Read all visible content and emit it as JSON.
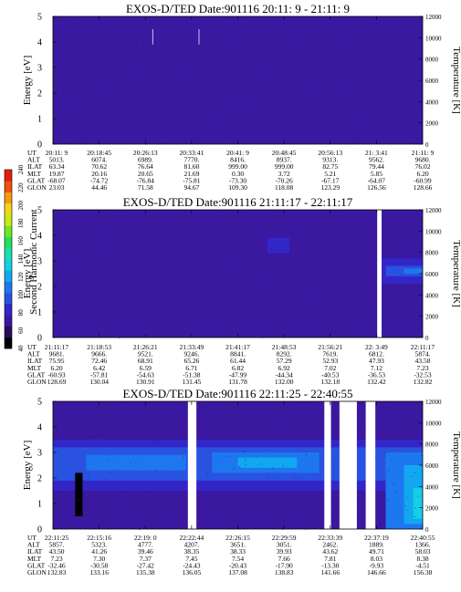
{
  "colorbar": {
    "label": "Second Harmonic Current",
    "ticks": [
      "40",
      "60",
      "80",
      "100",
      "120",
      "140",
      "160",
      "180",
      "200",
      "220",
      "240"
    ],
    "colors": [
      "#000000",
      "#2a0c5c",
      "#3b18a0",
      "#3326c8",
      "#2a52e0",
      "#1d78f0",
      "#12a8f0",
      "#14d0e6",
      "#18e0b4",
      "#22e060",
      "#70e820",
      "#c8e818",
      "#f4d418",
      "#f49a10",
      "#ee5010",
      "#e41c10"
    ]
  },
  "ephemeris_labels": [
    "UT",
    "ALT",
    "ILAT",
    "MLT",
    "GLAT",
    "GLON"
  ],
  "panels": [
    {
      "title": "EXOS-D/TED   Date:901116  20:11: 9 - 21:11: 9",
      "chart_data": {
        "type": "heatmap",
        "title": "EXOS-D/TED   Date:901116  20:11: 9 - 21:11: 9",
        "ylabel": "Energy [eV]",
        "y2label": "Temperature [K]",
        "ylim": [
          0,
          5
        ],
        "y2lim": [
          0,
          12000
        ],
        "yticks": [
          "0",
          "1",
          "2",
          "3",
          "4",
          "5"
        ],
        "y2ticks": [
          "0",
          "2000",
          "4000",
          "6000",
          "8000",
          "10000",
          "12000"
        ],
        "background_color": "#3b18a0",
        "bands": [],
        "gaps": [],
        "markers": [
          {
            "x": 0.27,
            "y0": 3.9,
            "y1": 4.5
          },
          {
            "x": 0.395,
            "y0": 3.9,
            "y1": 4.5
          }
        ],
        "x_ticks": [
          "20:11: 9",
          "20:18:45",
          "20:26:13",
          "20:33:41",
          "20:41: 9",
          "20:48:45",
          "20:56:13",
          "21: 3:41",
          "21:11: 9"
        ],
        "ephemeris": [
          [
            "20:11: 9",
            "20:18:45",
            "20:26:13",
            "20:33:41",
            "20:41: 9",
            "20:48:45",
            "20:56:13",
            "21: 3:41",
            "21:11: 9"
          ],
          [
            "5013.",
            "6074.",
            "6989.",
            "7770.",
            "8416.",
            "8937.",
            "9313.",
            "9562.",
            "9680."
          ],
          [
            "63.34",
            "70.62",
            "76.64",
            "81.60",
            "999.00",
            "999.00",
            "82.75",
            "79.44",
            "76.02"
          ],
          [
            "19.87",
            "20.16",
            "20.65",
            "21.69",
            "0.30",
            "3.72",
            "5.21",
            "5.85",
            "6.20"
          ],
          [
            "-68.07",
            "-74.72",
            "-76.84",
            "-75.81",
            "-73.30",
            "-70.26",
            "-67.17",
            "-64.07",
            "-60.99"
          ],
          [
            "23.03",
            "44.46",
            "71.58",
            "94.67",
            "109.30",
            "118.08",
            "123.29",
            "126.56",
            "128.66"
          ]
        ]
      }
    },
    {
      "title": "EXOS-D/TED   Date:901116  21:11:17 - 22:11:17",
      "chart_data": {
        "type": "heatmap",
        "title": "EXOS-D/TED   Date:901116  21:11:17 - 22:11:17",
        "ylabel": "Energy [eV]",
        "y2label": "Temperature [K]",
        "ylim": [
          0,
          5
        ],
        "y2lim": [
          0,
          12000
        ],
        "yticks": [
          "0",
          "1",
          "2",
          "3",
          "4",
          "5"
        ],
        "y2ticks": [
          "0",
          "2000",
          "4000",
          "6000",
          "8000",
          "10000",
          "12000"
        ],
        "background_color": "#3b18a0",
        "bands": [
          {
            "x0": 0.58,
            "x1": 0.64,
            "y0": 3.3,
            "y1": 3.9,
            "color": "#3326c8"
          },
          {
            "x0": 0.89,
            "x1": 1.0,
            "y0": 2.1,
            "y1": 3.1,
            "color": "#3326c8"
          },
          {
            "x0": 0.9,
            "x1": 1.0,
            "y0": 2.4,
            "y1": 2.8,
            "color": "#2a52e0"
          },
          {
            "x0": 0.95,
            "x1": 1.0,
            "y0": 2.5,
            "y1": 2.7,
            "color": "#1d78f0"
          }
        ],
        "gaps": [
          {
            "x0": 0.877,
            "x1": 0.889
          }
        ],
        "markers": [],
        "x_ticks": [
          "21:11:17",
          "21:18:53",
          "21:26:21",
          "21:33:49",
          "21:41:17",
          "21:48:53",
          "21:56:21",
          "22: 3:49",
          "22:11:17"
        ],
        "ephemeris": [
          [
            "21:11:17",
            "21:18:53",
            "21:26:21",
            "21:33:49",
            "21:41:17",
            "21:48:53",
            "21:56:21",
            "22: 3:49",
            "22:11:17"
          ],
          [
            "9681.",
            "9666.",
            "9521.",
            "9246.",
            "8841.",
            "8292.",
            "7619.",
            "6812.",
            "5874."
          ],
          [
            "75.95",
            "72.46",
            "68.91",
            "65.26",
            "61.44",
            "57.29",
            "52.93",
            "47.93",
            "43.58"
          ],
          [
            "6.20",
            "6.42",
            "6.59",
            "6.71",
            "6.82",
            "6.92",
            "7.02",
            "7.12",
            "7.23"
          ],
          [
            "-60.93",
            "-57.81",
            "-54.63",
            "-51.38",
            "-47.99",
            "-44.34",
            "-40.53",
            "-36.53",
            "-32.53"
          ],
          [
            "128.69",
            "130.04",
            "130.91",
            "131.45",
            "131.78",
            "132.00",
            "132.18",
            "132.42",
            "132.82"
          ]
        ]
      }
    },
    {
      "title": "EXOS-D/TED   Date:901116  22:11:25 - 22:40:55",
      "chart_data": {
        "type": "heatmap",
        "title": "EXOS-D/TED   Date:901116  22:11:25 - 22:40:55",
        "ylabel": "Energy [eV]",
        "y2label": "Temperature [K]",
        "ylim": [
          0,
          5
        ],
        "y2lim": [
          0,
          12000
        ],
        "yticks": [
          "0",
          "1",
          "2",
          "3",
          "4",
          "5"
        ],
        "y2ticks": [
          "0",
          "2000",
          "4000",
          "6000",
          "8000",
          "10000",
          "12000"
        ],
        "background_color": "#3b18a0",
        "bands": [
          {
            "x0": 0.0,
            "x1": 1.0,
            "y0": 1.5,
            "y1": 3.5,
            "color": "#3326c8"
          },
          {
            "x0": 0.0,
            "x1": 1.0,
            "y0": 1.9,
            "y1": 3.2,
            "color": "#2a52e0"
          },
          {
            "x0": 0.09,
            "x1": 0.36,
            "y0": 2.3,
            "y1": 2.9,
            "color": "#1d78f0"
          },
          {
            "x0": 0.43,
            "x1": 0.72,
            "y0": 2.2,
            "y1": 3.0,
            "color": "#1d78f0"
          },
          {
            "x0": 0.5,
            "x1": 0.66,
            "y0": 2.4,
            "y1": 2.8,
            "color": "#12a8f0"
          },
          {
            "x0": 0.9,
            "x1": 1.0,
            "y0": 0.0,
            "y1": 3.0,
            "color": "#1d78f0"
          },
          {
            "x0": 0.95,
            "x1": 1.0,
            "y0": 0.2,
            "y1": 2.5,
            "color": "#12a8f0"
          },
          {
            "x0": 0.975,
            "x1": 1.0,
            "y0": 0.4,
            "y1": 1.6,
            "color": "#14d0e6"
          },
          {
            "x0": 0.06,
            "x1": 0.08,
            "y0": 0.5,
            "y1": 2.2,
            "color": "#000000"
          }
        ],
        "gaps": [
          {
            "x0": 0.365,
            "x1": 0.388
          },
          {
            "x0": 0.734,
            "x1": 0.752
          },
          {
            "x0": 0.775,
            "x1": 0.822
          },
          {
            "x0": 0.846,
            "x1": 0.872
          }
        ],
        "markers": [],
        "x_ticks": [
          "22:11:25",
          "22:15:16",
          "22:19: 0",
          "22:22:44",
          "22:26:15",
          "22:29:59",
          "22:33:39",
          "22:37:19",
          "22:40:55"
        ],
        "ephemeris": [
          [
            "22:11:25",
            "22:15:16",
            "22:19: 0",
            "22:22:44",
            "22:26:15",
            "22:29:59",
            "22:33:39",
            "22:37:19",
            "22:40:55"
          ],
          [
            "5857.",
            "5323.",
            "4777.",
            "4207.",
            "3651.",
            "3051.",
            "2462.",
            "1889.",
            "1366."
          ],
          [
            "43.50",
            "41.26",
            "39.46",
            "38.35",
            "38.33",
            "39.93",
            "43.62",
            "49.71",
            "58.03"
          ],
          [
            "7.23",
            "7.30",
            "7.37",
            "7.45",
            "7.54",
            "7.66",
            "7.81",
            "8.03",
            "8.38"
          ],
          [
            "-32.46",
            "-30.58",
            "-27.42",
            "-24.43",
            "-20.43",
            "-17.90",
            "-13.30",
            "-9.93",
            "-4.51"
          ],
          [
            "132.83",
            "133.16",
            "135.38",
            "136.05",
            "137.08",
            "138.83",
            "141.66",
            "146.66",
            "156.38"
          ]
        ]
      }
    }
  ]
}
